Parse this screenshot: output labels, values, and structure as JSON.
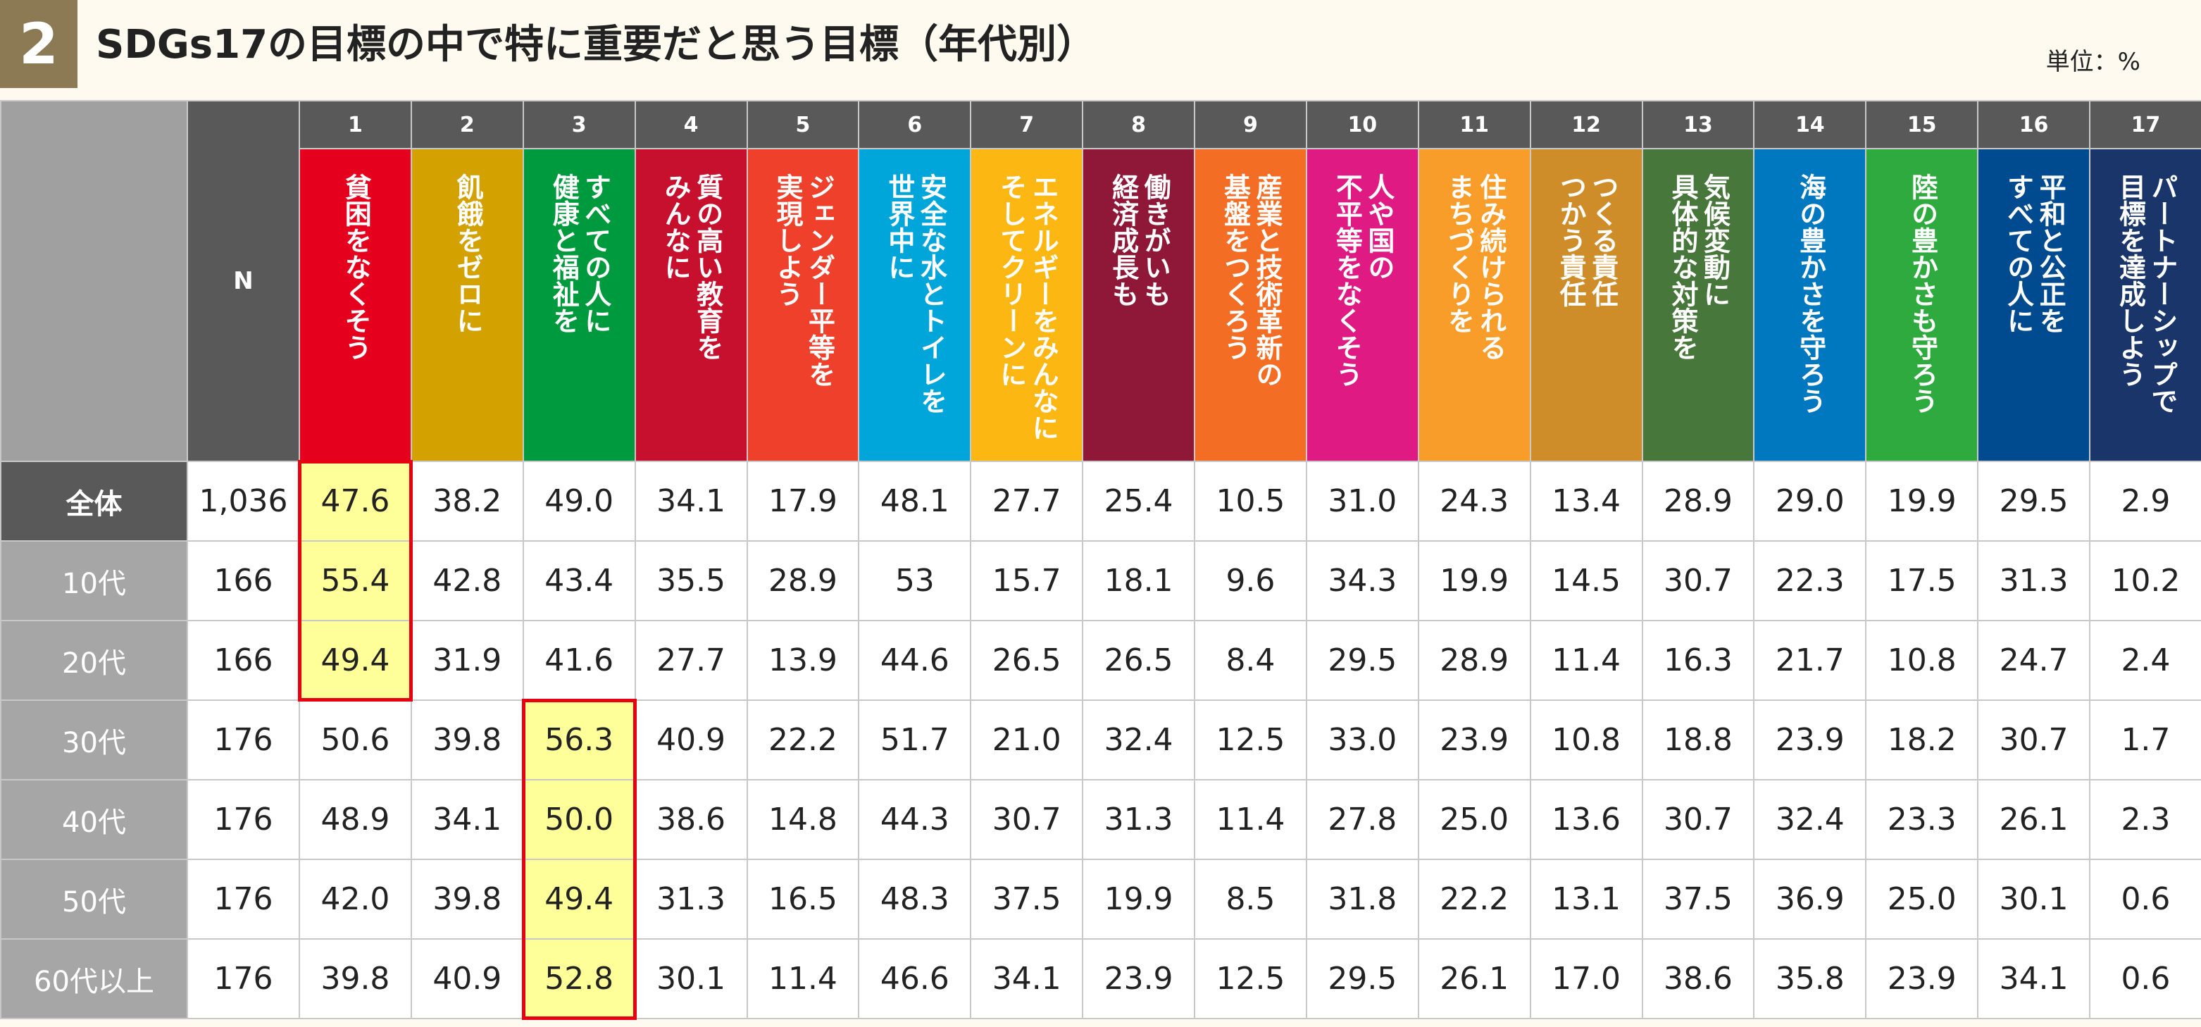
{
  "header": {
    "badge": "2",
    "title": "SDGs17の目標の中で特に重要だと思う目標（年代別）",
    "unit": "単位：%"
  },
  "table": {
    "n_label": "N",
    "goals": [
      {
        "num": "1",
        "name": "貧困をなくそう",
        "color": "#e5001e"
      },
      {
        "num": "2",
        "name": "飢餓をゼロに",
        "color": "#d3a100"
      },
      {
        "num": "3",
        "name": "すべての人に\n健康と福祉を",
        "color": "#009a3e"
      },
      {
        "num": "4",
        "name": "質の高い教育を\nみんなに",
        "color": "#c7102e"
      },
      {
        "num": "5",
        "name": "ジェンダー平等を\n実現しよう",
        "color": "#ef402b"
      },
      {
        "num": "6",
        "name": "安全な水とトイレを\n世界中に",
        "color": "#00a6d9"
      },
      {
        "num": "7",
        "name": "エネルギーをみんなに\nそしてクリーンに",
        "color": "#fdb713"
      },
      {
        "num": "8",
        "name": "働きがいも\n経済成長も",
        "color": "#8f1838"
      },
      {
        "num": "9",
        "name": "産業と技術革新の\n基盤をつくろう",
        "color": "#f36e24"
      },
      {
        "num": "10",
        "name": "人や国の\n不平等をなくそう",
        "color": "#e01a83"
      },
      {
        "num": "11",
        "name": "住み続けられる\nまちづくりを",
        "color": "#f89d2a"
      },
      {
        "num": "12",
        "name": "つくる責任\nつかう責任",
        "color": "#cf8d2a"
      },
      {
        "num": "13",
        "name": "気候変動に\n具体的な対策を",
        "color": "#48773c"
      },
      {
        "num": "14",
        "name": "海の豊かさを守ろう",
        "color": "#0078bf"
      },
      {
        "num": "15",
        "name": "陸の豊かさも守ろう",
        "color": "#2eaa3e"
      },
      {
        "num": "16",
        "name": "平和と公正を\nすべての人に",
        "color": "#004a8f"
      },
      {
        "num": "17",
        "name": "パートナーシップで\n目標を達成しよう",
        "color": "#19356a"
      }
    ],
    "rows": [
      {
        "label": "全体",
        "n": "1,036",
        "values": [
          "47.6",
          "38.2",
          "49.0",
          "34.1",
          "17.9",
          "48.1",
          "27.7",
          "25.4",
          "10.5",
          "31.0",
          "24.3",
          "13.4",
          "28.9",
          "29.0",
          "19.9",
          "29.5",
          "2.9"
        ],
        "highlight": 0
      },
      {
        "label": "10代",
        "n": "166",
        "values": [
          "55.4",
          "42.8",
          "43.4",
          "35.5",
          "28.9",
          "53",
          "15.7",
          "18.1",
          "9.6",
          "34.3",
          "19.9",
          "14.5",
          "30.7",
          "22.3",
          "17.5",
          "31.3",
          "10.2"
        ],
        "highlight": 0
      },
      {
        "label": "20代",
        "n": "166",
        "values": [
          "49.4",
          "31.9",
          "41.6",
          "27.7",
          "13.9",
          "44.6",
          "26.5",
          "26.5",
          "8.4",
          "29.5",
          "28.9",
          "11.4",
          "16.3",
          "21.7",
          "10.8",
          "24.7",
          "2.4"
        ],
        "highlight": 0
      },
      {
        "label": "30代",
        "n": "176",
        "values": [
          "50.6",
          "39.8",
          "56.3",
          "40.9",
          "22.2",
          "51.7",
          "21.0",
          "32.4",
          "12.5",
          "33.0",
          "23.9",
          "10.8",
          "18.8",
          "23.9",
          "18.2",
          "30.7",
          "1.7"
        ],
        "highlight": 2
      },
      {
        "label": "40代",
        "n": "176",
        "values": [
          "48.9",
          "34.1",
          "50.0",
          "38.6",
          "14.8",
          "44.3",
          "30.7",
          "31.3",
          "11.4",
          "27.8",
          "25.0",
          "13.6",
          "30.7",
          "32.4",
          "23.3",
          "26.1",
          "2.3"
        ],
        "highlight": 2
      },
      {
        "label": "50代",
        "n": "176",
        "values": [
          "42.0",
          "39.8",
          "49.4",
          "31.3",
          "16.5",
          "48.3",
          "37.5",
          "19.9",
          "8.5",
          "31.8",
          "22.2",
          "13.1",
          "37.5",
          "36.9",
          "25.0",
          "30.1",
          "0.6"
        ],
        "highlight": 2
      },
      {
        "label": "60代以上",
        "n": "176",
        "values": [
          "39.8",
          "40.9",
          "52.8",
          "30.1",
          "11.4",
          "46.6",
          "34.1",
          "23.9",
          "12.5",
          "29.5",
          "26.1",
          "17.0",
          "38.6",
          "35.8",
          "23.9",
          "34.1",
          "0.6"
        ],
        "highlight": 2
      }
    ]
  },
  "chart_data": {
    "type": "table",
    "title": "SDGs17の目標の中で特に重要だと思う目標（年代別）",
    "unit": "単位：%",
    "columns": [
      "N",
      "1",
      "2",
      "3",
      "4",
      "5",
      "6",
      "7",
      "8",
      "9",
      "10",
      "11",
      "12",
      "13",
      "14",
      "15",
      "16",
      "17"
    ],
    "rows": [
      "全体",
      "10代",
      "20代",
      "30代",
      "40代",
      "50代",
      "60代以上"
    ],
    "highlight_groups": [
      {
        "column": "1",
        "rows": [
          "全体",
          "10代",
          "20代"
        ]
      },
      {
        "column": "3",
        "rows": [
          "30代",
          "40代",
          "50代",
          "60代以上"
        ]
      }
    ]
  }
}
